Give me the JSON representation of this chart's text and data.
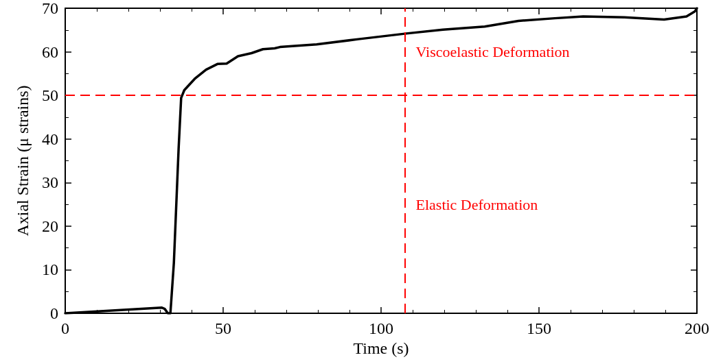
{
  "chart_data": {
    "type": "line",
    "xlabel": "Time (s)",
    "ylabel": "Axial Strain (μ strains)",
    "xlim": [
      0,
      200
    ],
    "xticks": [
      0,
      50,
      100,
      150,
      200
    ],
    "ylim": [
      0,
      70
    ],
    "yticks": [
      0,
      10,
      20,
      30,
      40,
      50,
      60,
      70
    ],
    "grid": false,
    "marker": "none",
    "line_style": "solid",
    "series": [
      {
        "color": "#000000",
        "x": [
          0,
          30.6,
          31.5,
          32.5,
          33.3,
          34.4,
          35.9,
          36.7,
          37.7,
          41,
          44.6,
          48.2,
          51.1,
          54.7,
          59,
          62.6,
          66.3,
          68,
          79.6,
          92.8,
          108,
          119.6,
          132.8,
          143.5,
          155,
          164,
          177,
          189.6,
          196.7,
          199.4,
          200
        ],
        "values": [
          0,
          1.3,
          1.0,
          0,
          0,
          11.6,
          37.8,
          49.4,
          51.2,
          53.8,
          55.9,
          57.2,
          57.3,
          59,
          59.7,
          60.6,
          60.8,
          61.1,
          61.7,
          62.9,
          64.2,
          65.1,
          65.8,
          67.1,
          67.7,
          68.1,
          67.9,
          67.4,
          68.1,
          69.3,
          70
        ]
      }
    ],
    "ref_lines": [
      {
        "axis": "y",
        "value": 50,
        "color": "#ff0000",
        "line_style": "dashed"
      },
      {
        "axis": "x",
        "value": 107.5,
        "color": "#ff0000",
        "line_style": "dashed"
      }
    ],
    "annotations": [
      "Viscoelastic Deformation",
      "Elastic Deformation"
    ]
  }
}
